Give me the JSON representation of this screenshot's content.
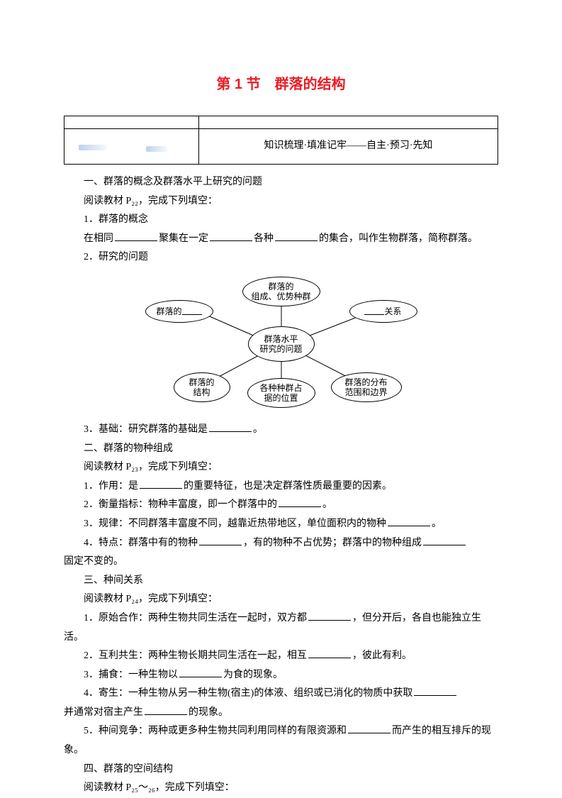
{
  "title": "第 1 节　群落的结构",
  "header": {
    "right_text": "知识梳理·填准记牢——自主·预习·先知"
  },
  "section1": {
    "heading": "一、群落的概念及群落水平上研究的问题",
    "read": "阅读教材 P₂₂，完成下列填空：",
    "p1_label": "1．群落的概念",
    "p1_body_a": "在相同",
    "p1_body_b": "聚集在一定",
    "p1_body_c": "各种",
    "p1_body_d": "的集合，叫作生物群落，简称群落。",
    "p2_label": "2．研究的问题",
    "p3_a": "3．基础：研究群落的基础是",
    "p3_b": "。"
  },
  "diagram": {
    "center": "群落水平\n研究的问题",
    "n_top": "群落的\n组成、优势种群",
    "n_tl_a": "群落的",
    "n_tr_b": "关系",
    "n_bl": "群落的\n结构",
    "n_bm": "各种种群占\n据的位置",
    "n_br": "群落的分布\n范围和边界",
    "line_color": "#000000"
  },
  "section2": {
    "heading": "二、群落的物种组成",
    "read": "阅读教材 P₂₃，完成下列填空：",
    "p1_a": "1．作用：是",
    "p1_b": "的重要特征，也是决定群落性质最重要的因素。",
    "p2_a": "2．衡量指标：物种丰富度，即一个群落中的",
    "p2_b": "。",
    "p3_a": "3．规律：不同群落丰富度不同，越靠近热带地区，单位面积内的物种",
    "p3_b": "。",
    "p4_a": "4．特点：群落中有的物种",
    "p4_b": "，有的物种不占优势；群落中的物种组成",
    "p4_c": "固定不变的。"
  },
  "section3": {
    "heading": "三、种间关系",
    "read": "阅读教材 P₂₄，完成下列填空：",
    "p1_a": "1．原始合作：两种生物共同生活在一起时，双方都",
    "p1_b": "，但分开后，各自也能独立生活。",
    "p2_a": "2．互利共生：两种生物长期共同生活在一起，相互",
    "p2_b": "，彼此有利。",
    "p3_a": "3．捕食：一种生物以",
    "p3_b": "为食的现象。",
    "p4_a": "4．寄生：一种生物从另一种生物(宿主)的体液、组织或已消化的物质中获取",
    "p4_b": "并通常对宿主产生",
    "p4_c": "的现象。",
    "p5_a": "5．种间竞争：两种或更多种生物共同利用同样的有限资源和",
    "p5_b": "而产生的相互排斥的现象。"
  },
  "section4": {
    "heading": "四、群落的空间结构",
    "read": "阅读教材 P₂₅～₂₆，完成下列填空："
  }
}
